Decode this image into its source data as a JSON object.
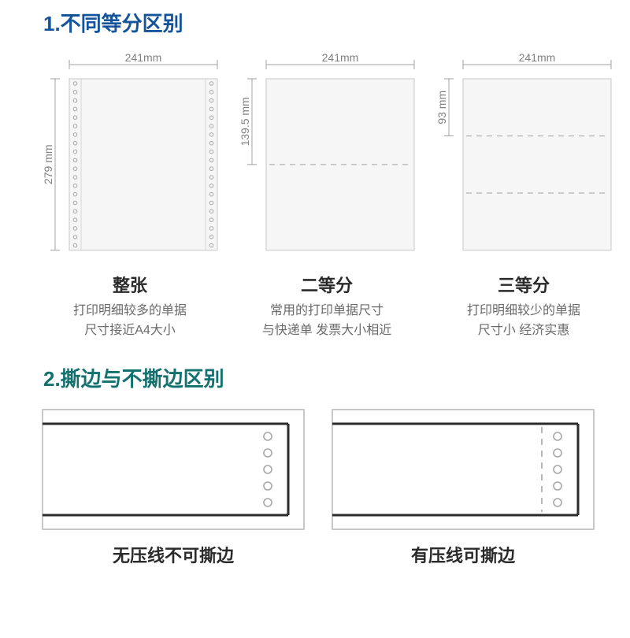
{
  "theme": {
    "heading1_color": "#15549a",
    "heading2_color": "#13716f",
    "text_color": "#2a2a2a",
    "desc_color": "#6a6a6a",
    "paper_fill": "#f6f6f7",
    "paper_border": "#cfcfcf",
    "dash_color": "#b8b8b8",
    "dim_line_color": "#a0a0a0",
    "dim_text_color": "#808080",
    "hole_stroke": "#a8a8a8",
    "edge_frame_stroke": "#b5b5b5",
    "edge_paper_stroke": "#2b2b2b",
    "heading_fontsize": 26,
    "title_fontsize": 22,
    "desc_fontsize": 16,
    "dim_fontsize": 14
  },
  "section1": {
    "heading": "1.不同等分区别",
    "paper_width_mm": 241,
    "paper_height_mm": 279,
    "width_label": "241mm",
    "papers": [
      {
        "key": "full",
        "title": "整张",
        "desc_line1": "打印明细较多的单据",
        "desc_line2": "尺寸接近A4大小",
        "height_label": "279 mm",
        "divisions": 1,
        "show_side_holes": true
      },
      {
        "key": "half",
        "title": "二等分",
        "desc_line1": "常用的打印单据尺寸",
        "desc_line2": "与快递单 发票大小相近",
        "height_label": "139.5 mm",
        "divisions": 2,
        "show_side_holes": false
      },
      {
        "key": "third",
        "title": "三等分",
        "desc_line1": "打印明细较少的单据",
        "desc_line2": "尺寸小 经济实惠",
        "height_label": "93 mm",
        "divisions": 3,
        "show_side_holes": false
      }
    ]
  },
  "section2": {
    "heading": "2.撕边与不撕边区别",
    "edges": [
      {
        "key": "no-tear",
        "title": "无压线不可撕边",
        "has_tear_line": false
      },
      {
        "key": "tear",
        "title": "有压线可撕边",
        "has_tear_line": true
      }
    ]
  }
}
